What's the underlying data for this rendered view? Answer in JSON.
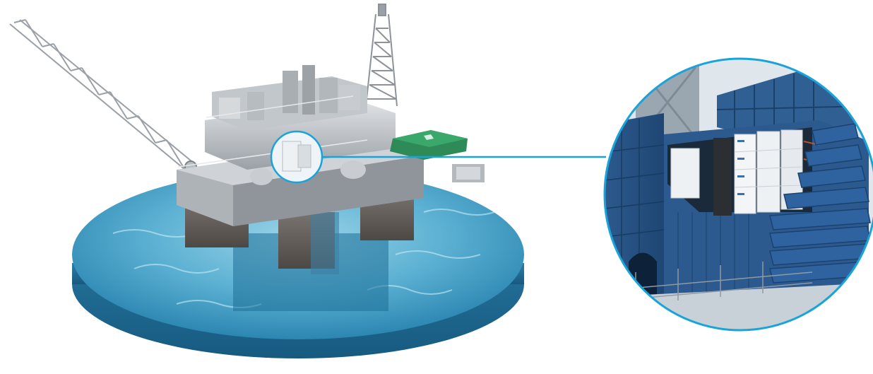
{
  "scene": {
    "subject": "offshore-oil-platform",
    "callout": "zoomed-detail-of-blue-enclosure-module"
  },
  "colors": {
    "background": "#ffffff",
    "water_light": "#7cc3dc",
    "water_mid": "#3a97bf",
    "water_dark": "#1f6f96",
    "platform_gray": "#b9bec3",
    "platform_dark": "#6d7378",
    "helipad_green": "#2e8b57",
    "callout_ring": "#1aa3d9",
    "enclosure_blue": "#2f5f93",
    "enclosure_blue_dark": "#1f4673",
    "module_white": "#eef1f4"
  },
  "icons": [
    "magnify-callout-icon"
  ]
}
